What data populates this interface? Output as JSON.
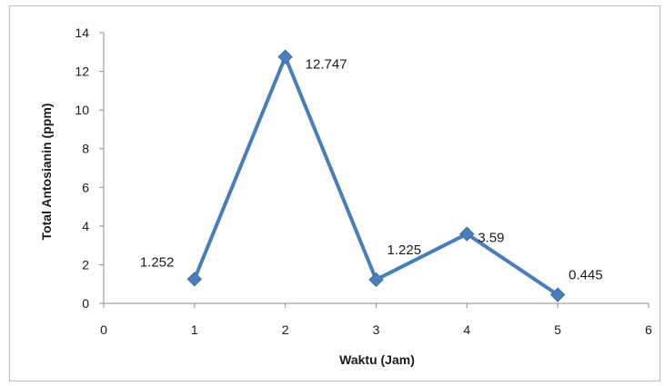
{
  "chart_data": {
    "type": "line",
    "title": "",
    "xlabel": "Waktu (Jam)",
    "ylabel": "Total Antosianin (ppm)",
    "xlim": [
      0,
      6
    ],
    "ylim": [
      0,
      14
    ],
    "xticks": [
      0,
      1,
      2,
      3,
      4,
      5,
      6
    ],
    "yticks": [
      0,
      2,
      4,
      6,
      8,
      10,
      12,
      14
    ],
    "grid": false,
    "legend": "none",
    "series": [
      {
        "color": "#4a7ebb",
        "marker": "diamond",
        "x": [
          1,
          2,
          3,
          4,
          5
        ],
        "y": [
          1.252,
          12.747,
          1.225,
          3.59,
          0.445
        ],
        "labels": [
          "1.252",
          "12.747",
          "1.225",
          "3.59",
          "0.445"
        ]
      }
    ]
  }
}
